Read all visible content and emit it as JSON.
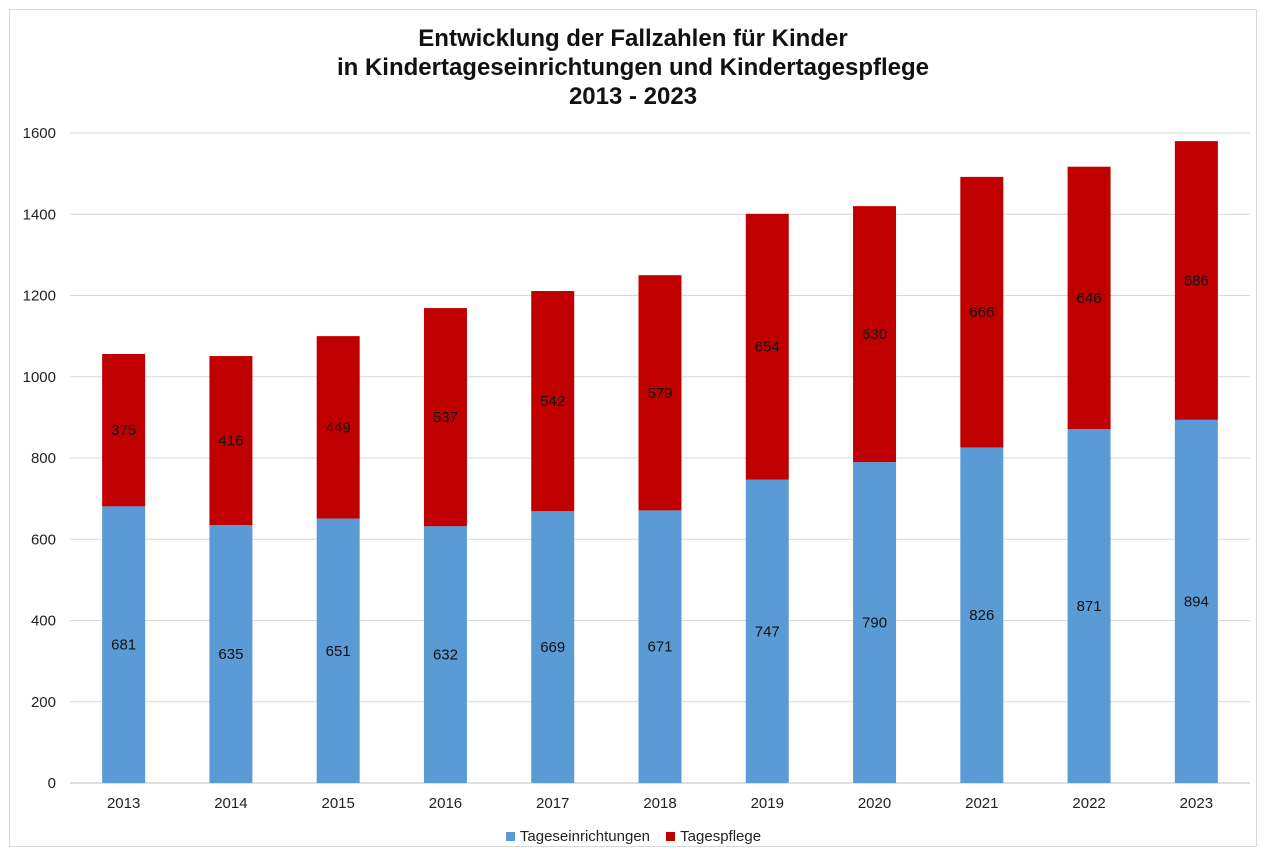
{
  "chart_data": {
    "type": "bar",
    "stacked": true,
    "title": [
      "Entwicklung der Fallzahlen für Kinder",
      "in Kindertageseinrichtungen und Kindertagespflege",
      "2013 - 2023"
    ],
    "categories": [
      "2013",
      "2014",
      "2015",
      "2016",
      "2017",
      "2018",
      "2019",
      "2020",
      "2021",
      "2022",
      "2023"
    ],
    "series": [
      {
        "name": "Tageseinrichtungen",
        "color": "#5b9bd5",
        "values": [
          681,
          635,
          651,
          632,
          669,
          671,
          747,
          790,
          826,
          871,
          894
        ]
      },
      {
        "name": "Tagespflege",
        "color": "#c00000",
        "values": [
          375,
          416,
          449,
          537,
          542,
          579,
          654,
          630,
          666,
          646,
          686
        ]
      }
    ],
    "ylim": [
      0,
      1600
    ],
    "yticks": [
      0,
      200,
      400,
      600,
      800,
      1000,
      1200,
      1400,
      1600
    ],
    "grid": true,
    "legend_position": "bottom"
  }
}
